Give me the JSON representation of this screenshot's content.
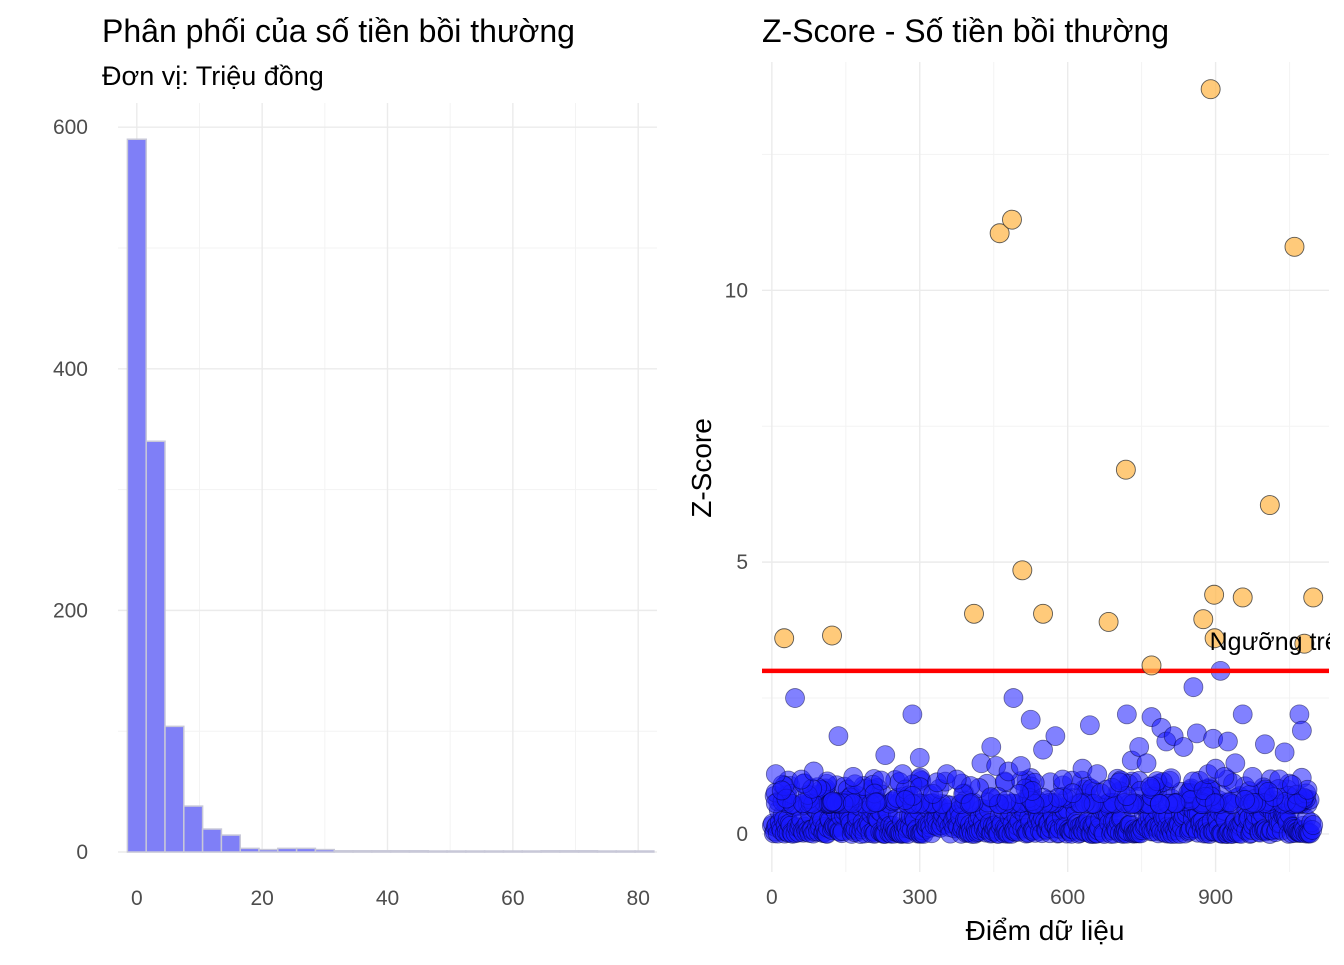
{
  "chart_data": [
    {
      "type": "bar",
      "title": "Phân phối của số tiền bồi thường",
      "subtitle": "Đơn vị: Triệu đồng",
      "xlabel": "",
      "ylabel": "",
      "xlim": [
        -3,
        83
      ],
      "ylim": [
        0,
        620
      ],
      "xticks": [
        "0",
        "20",
        "40",
        "60",
        "80"
      ],
      "yticks": [
        "0",
        "200",
        "400",
        "600"
      ],
      "bin_width": 3,
      "bin_start": -1.5,
      "values": [
        590,
        340,
        104,
        38,
        19,
        14,
        3,
        2,
        3,
        3,
        2,
        1,
        1,
        1,
        1,
        1,
        0,
        0,
        0,
        0,
        0,
        0,
        1,
        1,
        1,
        0,
        0,
        0
      ],
      "fill_color": "#7f7ff7",
      "edge_color": "#c8c8d8",
      "grid": true
    },
    {
      "type": "scatter",
      "title": "Z-Score - Số tiền bồi thường",
      "xlabel": "Điểm dữ liệu",
      "ylabel": "Z-Score",
      "xlim": [
        -20,
        1130
      ],
      "ylim": [
        -0.7,
        14.2
      ],
      "xticks": [
        "0",
        "300",
        "600",
        "900"
      ],
      "yticks": [
        "0",
        "5",
        "10"
      ],
      "threshold": 3,
      "threshold_label": "Ngưỡng trên Z-Score",
      "threshold_color": "#ff0000",
      "normal_color": "#1a1aff",
      "outlier_color": "#ffb84d",
      "grid": true,
      "outliers": [
        {
          "x": 25,
          "y": 3.6
        },
        {
          "x": 122,
          "y": 3.65
        },
        {
          "x": 410,
          "y": 4.05
        },
        {
          "x": 462,
          "y": 11.05
        },
        {
          "x": 487,
          "y": 11.3
        },
        {
          "x": 508,
          "y": 4.85
        },
        {
          "x": 550,
          "y": 4.05
        },
        {
          "x": 683,
          "y": 3.9
        },
        {
          "x": 718,
          "y": 6.7
        },
        {
          "x": 770,
          "y": 3.1
        },
        {
          "x": 875,
          "y": 3.95
        },
        {
          "x": 890,
          "y": 13.7
        },
        {
          "x": 897,
          "y": 4.4
        },
        {
          "x": 898,
          "y": 3.6
        },
        {
          "x": 955,
          "y": 4.35
        },
        {
          "x": 1010,
          "y": 6.05
        },
        {
          "x": 1060,
          "y": 10.8
        },
        {
          "x": 1080,
          "y": 3.5
        },
        {
          "x": 1098,
          "y": 4.35
        }
      ],
      "normals": [
        {
          "x": 8,
          "y": 1.1
        },
        {
          "x": 20,
          "y": 0.8
        },
        {
          "x": 47,
          "y": 2.5
        },
        {
          "x": 60,
          "y": 1.0
        },
        {
          "x": 85,
          "y": 1.15
        },
        {
          "x": 135,
          "y": 1.8
        },
        {
          "x": 165,
          "y": 1.05
        },
        {
          "x": 230,
          "y": 1.45
        },
        {
          "x": 265,
          "y": 1.1
        },
        {
          "x": 285,
          "y": 2.2
        },
        {
          "x": 300,
          "y": 1.4
        },
        {
          "x": 335,
          "y": 0.95
        },
        {
          "x": 355,
          "y": 1.1
        },
        {
          "x": 375,
          "y": 1.0
        },
        {
          "x": 425,
          "y": 1.3
        },
        {
          "x": 445,
          "y": 1.6
        },
        {
          "x": 455,
          "y": 1.25
        },
        {
          "x": 480,
          "y": 1.15
        },
        {
          "x": 490,
          "y": 2.5
        },
        {
          "x": 505,
          "y": 1.25
        },
        {
          "x": 525,
          "y": 2.1
        },
        {
          "x": 550,
          "y": 1.55
        },
        {
          "x": 575,
          "y": 1.8
        },
        {
          "x": 590,
          "y": 1.0
        },
        {
          "x": 610,
          "y": 0.75
        },
        {
          "x": 630,
          "y": 1.2
        },
        {
          "x": 645,
          "y": 2.0
        },
        {
          "x": 660,
          "y": 1.1
        },
        {
          "x": 690,
          "y": 0.85
        },
        {
          "x": 705,
          "y": 0.95
        },
        {
          "x": 720,
          "y": 2.2
        },
        {
          "x": 730,
          "y": 1.35
        },
        {
          "x": 745,
          "y": 1.6
        },
        {
          "x": 760,
          "y": 1.3
        },
        {
          "x": 770,
          "y": 2.15
        },
        {
          "x": 790,
          "y": 1.95
        },
        {
          "x": 800,
          "y": 1.7
        },
        {
          "x": 815,
          "y": 1.8
        },
        {
          "x": 835,
          "y": 1.6
        },
        {
          "x": 855,
          "y": 2.7
        },
        {
          "x": 862,
          "y": 1.85
        },
        {
          "x": 885,
          "y": 1.1
        },
        {
          "x": 895,
          "y": 1.75
        },
        {
          "x": 900,
          "y": 1.2
        },
        {
          "x": 910,
          "y": 3.0
        },
        {
          "x": 918,
          "y": 1.05
        },
        {
          "x": 925,
          "y": 1.7
        },
        {
          "x": 940,
          "y": 1.3
        },
        {
          "x": 955,
          "y": 2.2
        },
        {
          "x": 975,
          "y": 1.05
        },
        {
          "x": 1000,
          "y": 1.65
        },
        {
          "x": 1040,
          "y": 1.5
        },
        {
          "x": 1055,
          "y": 0.9
        },
        {
          "x": 1070,
          "y": 2.2
        },
        {
          "x": 1075,
          "y": 1.9
        }
      ]
    }
  ]
}
